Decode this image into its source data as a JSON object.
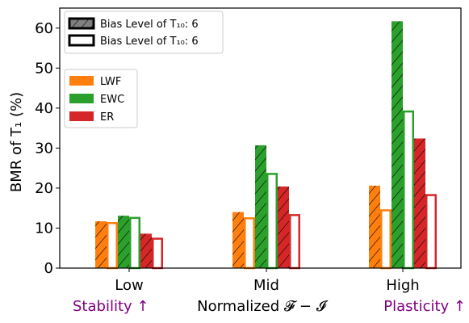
{
  "chart_data": {
    "type": "bar",
    "title": "",
    "xlabel": "Normalized 𝓕 − 𝓘",
    "ylabel": "BMR of T₁ (%)",
    "ylim": [
      0,
      65
    ],
    "yticks": [
      0,
      10,
      20,
      30,
      40,
      50,
      60
    ],
    "categories": [
      "Low",
      "Mid",
      "High"
    ],
    "x_annotations": {
      "left": "Stability ↑",
      "right": "Plasticity ↑"
    },
    "legend_hatch": [
      {
        "label": "Bias Level of T₁₀: 6",
        "style": "hatched-filled"
      },
      {
        "label": "Bias Level of T₁₀: 6",
        "style": "outlined"
      }
    ],
    "legend_methods": [
      {
        "label": "LWF",
        "color": "#ff7f0e"
      },
      {
        "label": "EWC",
        "color": "#2ca02c"
      },
      {
        "label": "ER",
        "color": "#d62728"
      }
    ],
    "series": [
      {
        "name": "LWF",
        "color": "#ff7f0e",
        "hatched": [
          11.7,
          14.0,
          20.6
        ],
        "outlined": [
          11.5,
          12.7,
          14.7
        ]
      },
      {
        "name": "EWC",
        "color": "#2ca02c",
        "hatched": [
          13.1,
          30.7,
          61.7
        ],
        "outlined": [
          12.8,
          23.8,
          39.4
        ]
      },
      {
        "name": "ER",
        "color": "#d62728",
        "hatched": [
          8.6,
          20.4,
          32.4
        ],
        "outlined": [
          7.6,
          13.5,
          18.5
        ]
      }
    ]
  }
}
